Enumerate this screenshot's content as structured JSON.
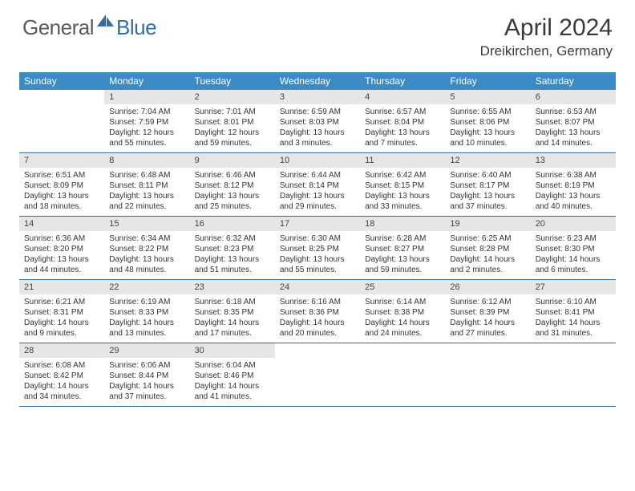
{
  "brand": {
    "general": "General",
    "blue": "Blue"
  },
  "title": "April 2024",
  "location": "Dreikirchen, Germany",
  "colors": {
    "header_bg": "#3b8bc4",
    "border": "#2f6fa8",
    "daynum_bg": "#e6e6e6",
    "text": "#333333"
  },
  "weekdays": [
    "Sunday",
    "Monday",
    "Tuesday",
    "Wednesday",
    "Thursday",
    "Friday",
    "Saturday"
  ],
  "weeks": [
    [
      {
        "blank": true
      },
      {
        "n": "1",
        "sr": "Sunrise: 7:04 AM",
        "ss": "Sunset: 7:59 PM",
        "dl": "Daylight: 12 hours and 55 minutes."
      },
      {
        "n": "2",
        "sr": "Sunrise: 7:01 AM",
        "ss": "Sunset: 8:01 PM",
        "dl": "Daylight: 12 hours and 59 minutes."
      },
      {
        "n": "3",
        "sr": "Sunrise: 6:59 AM",
        "ss": "Sunset: 8:03 PM",
        "dl": "Daylight: 13 hours and 3 minutes."
      },
      {
        "n": "4",
        "sr": "Sunrise: 6:57 AM",
        "ss": "Sunset: 8:04 PM",
        "dl": "Daylight: 13 hours and 7 minutes."
      },
      {
        "n": "5",
        "sr": "Sunrise: 6:55 AM",
        "ss": "Sunset: 8:06 PM",
        "dl": "Daylight: 13 hours and 10 minutes."
      },
      {
        "n": "6",
        "sr": "Sunrise: 6:53 AM",
        "ss": "Sunset: 8:07 PM",
        "dl": "Daylight: 13 hours and 14 minutes."
      }
    ],
    [
      {
        "n": "7",
        "sr": "Sunrise: 6:51 AM",
        "ss": "Sunset: 8:09 PM",
        "dl": "Daylight: 13 hours and 18 minutes."
      },
      {
        "n": "8",
        "sr": "Sunrise: 6:48 AM",
        "ss": "Sunset: 8:11 PM",
        "dl": "Daylight: 13 hours and 22 minutes."
      },
      {
        "n": "9",
        "sr": "Sunrise: 6:46 AM",
        "ss": "Sunset: 8:12 PM",
        "dl": "Daylight: 13 hours and 25 minutes."
      },
      {
        "n": "10",
        "sr": "Sunrise: 6:44 AM",
        "ss": "Sunset: 8:14 PM",
        "dl": "Daylight: 13 hours and 29 minutes."
      },
      {
        "n": "11",
        "sr": "Sunrise: 6:42 AM",
        "ss": "Sunset: 8:15 PM",
        "dl": "Daylight: 13 hours and 33 minutes."
      },
      {
        "n": "12",
        "sr": "Sunrise: 6:40 AM",
        "ss": "Sunset: 8:17 PM",
        "dl": "Daylight: 13 hours and 37 minutes."
      },
      {
        "n": "13",
        "sr": "Sunrise: 6:38 AM",
        "ss": "Sunset: 8:19 PM",
        "dl": "Daylight: 13 hours and 40 minutes."
      }
    ],
    [
      {
        "n": "14",
        "sr": "Sunrise: 6:36 AM",
        "ss": "Sunset: 8:20 PM",
        "dl": "Daylight: 13 hours and 44 minutes."
      },
      {
        "n": "15",
        "sr": "Sunrise: 6:34 AM",
        "ss": "Sunset: 8:22 PM",
        "dl": "Daylight: 13 hours and 48 minutes."
      },
      {
        "n": "16",
        "sr": "Sunrise: 6:32 AM",
        "ss": "Sunset: 8:23 PM",
        "dl": "Daylight: 13 hours and 51 minutes."
      },
      {
        "n": "17",
        "sr": "Sunrise: 6:30 AM",
        "ss": "Sunset: 8:25 PM",
        "dl": "Daylight: 13 hours and 55 minutes."
      },
      {
        "n": "18",
        "sr": "Sunrise: 6:28 AM",
        "ss": "Sunset: 8:27 PM",
        "dl": "Daylight: 13 hours and 59 minutes."
      },
      {
        "n": "19",
        "sr": "Sunrise: 6:25 AM",
        "ss": "Sunset: 8:28 PM",
        "dl": "Daylight: 14 hours and 2 minutes."
      },
      {
        "n": "20",
        "sr": "Sunrise: 6:23 AM",
        "ss": "Sunset: 8:30 PM",
        "dl": "Daylight: 14 hours and 6 minutes."
      }
    ],
    [
      {
        "n": "21",
        "sr": "Sunrise: 6:21 AM",
        "ss": "Sunset: 8:31 PM",
        "dl": "Daylight: 14 hours and 9 minutes."
      },
      {
        "n": "22",
        "sr": "Sunrise: 6:19 AM",
        "ss": "Sunset: 8:33 PM",
        "dl": "Daylight: 14 hours and 13 minutes."
      },
      {
        "n": "23",
        "sr": "Sunrise: 6:18 AM",
        "ss": "Sunset: 8:35 PM",
        "dl": "Daylight: 14 hours and 17 minutes."
      },
      {
        "n": "24",
        "sr": "Sunrise: 6:16 AM",
        "ss": "Sunset: 8:36 PM",
        "dl": "Daylight: 14 hours and 20 minutes."
      },
      {
        "n": "25",
        "sr": "Sunrise: 6:14 AM",
        "ss": "Sunset: 8:38 PM",
        "dl": "Daylight: 14 hours and 24 minutes."
      },
      {
        "n": "26",
        "sr": "Sunrise: 6:12 AM",
        "ss": "Sunset: 8:39 PM",
        "dl": "Daylight: 14 hours and 27 minutes."
      },
      {
        "n": "27",
        "sr": "Sunrise: 6:10 AM",
        "ss": "Sunset: 8:41 PM",
        "dl": "Daylight: 14 hours and 31 minutes."
      }
    ],
    [
      {
        "n": "28",
        "sr": "Sunrise: 6:08 AM",
        "ss": "Sunset: 8:42 PM",
        "dl": "Daylight: 14 hours and 34 minutes."
      },
      {
        "n": "29",
        "sr": "Sunrise: 6:06 AM",
        "ss": "Sunset: 8:44 PM",
        "dl": "Daylight: 14 hours and 37 minutes."
      },
      {
        "n": "30",
        "sr": "Sunrise: 6:04 AM",
        "ss": "Sunset: 8:46 PM",
        "dl": "Daylight: 14 hours and 41 minutes."
      },
      {
        "blank": true
      },
      {
        "blank": true
      },
      {
        "blank": true
      },
      {
        "blank": true
      }
    ]
  ]
}
